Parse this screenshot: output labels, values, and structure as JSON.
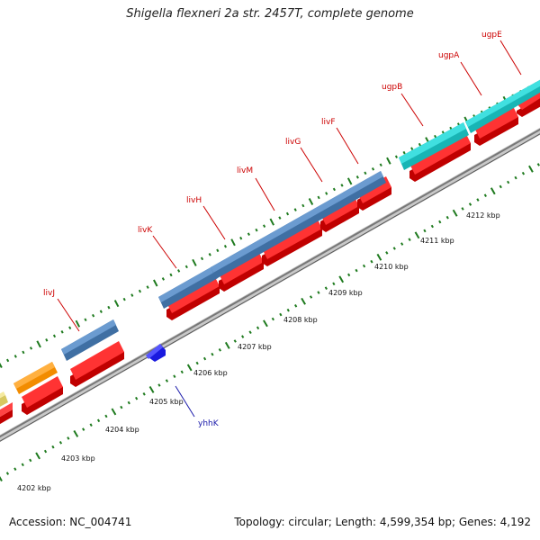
{
  "title": "Shigella flexneri 2a str. 2457T, complete genome",
  "footer": {
    "accession": "Accession: NC_004741",
    "summary": "Topology: circular; Length: 4,599,354 bp; Genes: 4,192"
  },
  "colors": {
    "steelblue": "#4f81b6",
    "cyan": "#1fc9c9",
    "red": "#ee1111",
    "orange": "#f28c00",
    "yellow": "#eee080",
    "blue": "#1a1adf",
    "tick": "#1e7a1e",
    "track": "#999999",
    "label_red": "#cc0000",
    "label_blue": "#1a1aaa"
  },
  "gene_labels": [
    "livJ",
    "livK",
    "livH",
    "livM",
    "livG",
    "livF",
    "ugpB",
    "ugpA",
    "ugpE",
    "yhhK"
  ],
  "kbp_labels": [
    "4202 kbp",
    "4203 kbp",
    "4204 kbp",
    "4205 kbp",
    "4206 kbp",
    "4207 kbp",
    "4208 kbp",
    "4209 kbp",
    "4210 kbp",
    "4211 kbp",
    "4212 kbp"
  ]
}
